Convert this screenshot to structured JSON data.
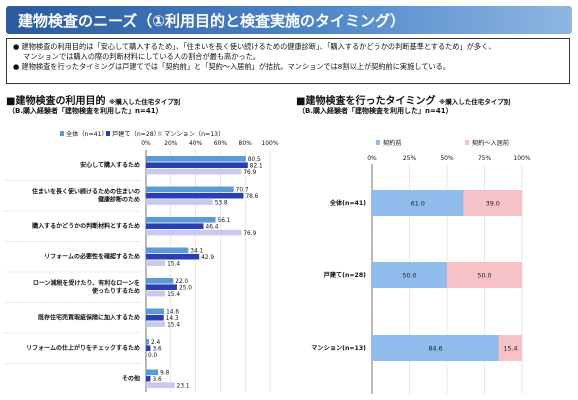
{
  "header": {
    "title": "建物検査のニーズ（①利用目的と検査実施のタイミング）"
  },
  "summary": {
    "lines": [
      "● 建物検査の利用目的は「安心して購入するため」、「住まいを長く使い続けるための健康診断」、「購入するかどうかの判断基準とするため」が多く、",
      "マンションでは購入の際の判断材料にしている人の割合が最も高かった。",
      "● 建物検査を行ったタイミングは戸建てでは「契約前」と「契約～入居前」が拮抗。マンションでは8割以上が契約前に実施している。"
    ]
  },
  "left_panel": {
    "heading": "■建物検査の利用目的",
    "note": "※購入した住宅タイプ別",
    "subheading": "（B.購入経験者「建物検査を利用した」n=41）"
  },
  "right_panel": {
    "heading": "■建物検査を行ったタイミング",
    "note": "※購入した住宅タイプ別",
    "subheading": "（B.購入経験者「建物検査を利用した」n=41）"
  },
  "colors": {
    "all": "#5b9bd5",
    "detached": "#2a3fb5",
    "mansion": "#c9c9ef",
    "before_contract": "#8fbcec",
    "after_contract": "#f7c1c8"
  },
  "chart_data": [
    {
      "type": "bar",
      "orientation": "horizontal",
      "categories": [
        [
          "安心して購入するため"
        ],
        [
          "住まいを長く使い続けるための住まいの",
          "健康診断のため"
        ],
        [
          "購入するかどうかの判断材料とするため"
        ],
        [
          "リフォームの必要性を確認するため"
        ],
        [
          "ローン減税を受けたり、有利なローンを",
          "使ったりするため"
        ],
        [
          "既存住宅売買瑕疵保険に加入するため"
        ],
        [
          "リフォームの仕上がりをチェックするため"
        ],
        [
          "その他"
        ]
      ],
      "series": [
        {
          "name": "全体（n=41）",
          "values": [
            80.5,
            70.7,
            56.1,
            34.1,
            22.0,
            14.6,
            2.4,
            9.8
          ]
        },
        {
          "name": "戸建て（n=28）",
          "values": [
            82.1,
            78.6,
            46.4,
            42.9,
            25.0,
            14.3,
            3.6,
            3.6
          ]
        },
        {
          "name": "マンション（n=13）",
          "values": [
            76.9,
            53.8,
            76.9,
            15.4,
            15.4,
            15.4,
            0.0,
            23.1
          ]
        }
      ],
      "xlim": [
        0,
        100
      ],
      "xticks": [
        "0%",
        "20%",
        "40%",
        "60%",
        "80%",
        "100%"
      ],
      "legend_position": "top"
    },
    {
      "type": "bar",
      "orientation": "horizontal",
      "stacked": true,
      "categories": [
        "全体(n=41)",
        "戸建て(n=28)",
        "マンション(n=13)"
      ],
      "series": [
        {
          "name": "契約前",
          "values": [
            61.0,
            50.0,
            84.6
          ]
        },
        {
          "name": "契約～入居前",
          "values": [
            39.0,
            50.0,
            15.4
          ]
        }
      ],
      "xlim": [
        0,
        100
      ],
      "xticks": [
        "0%",
        "25%",
        "50%",
        "75%",
        "100%"
      ],
      "legend_position": "top"
    }
  ]
}
